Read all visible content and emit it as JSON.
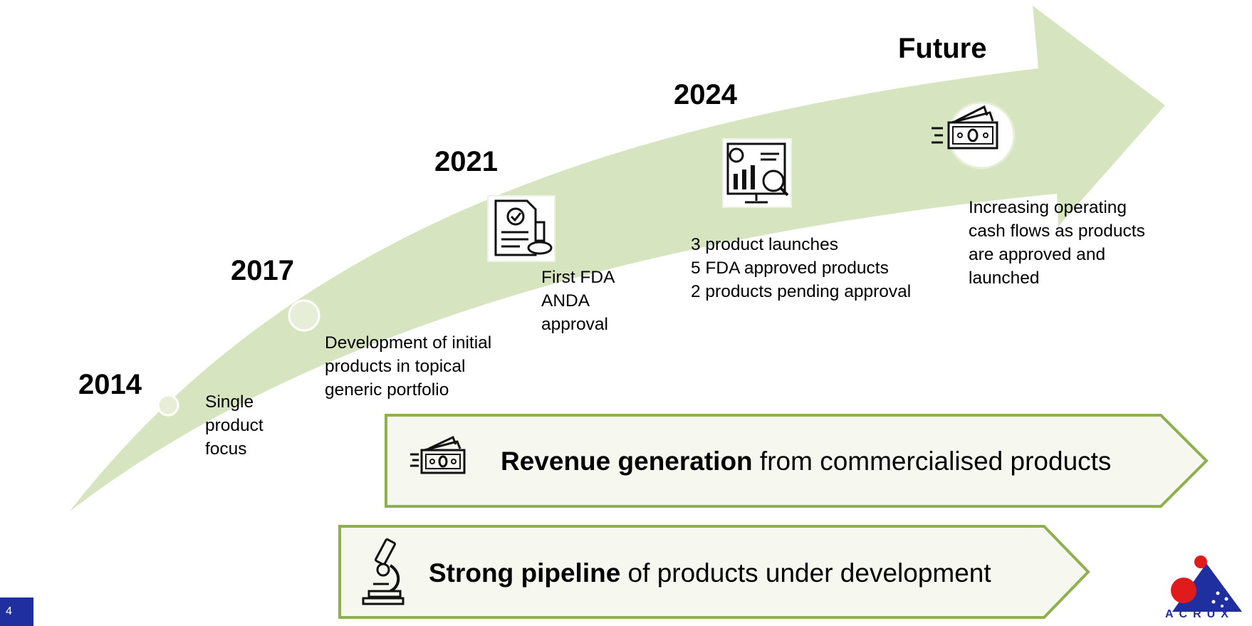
{
  "slide": {
    "page_number": "4"
  },
  "milestones": [
    {
      "year": "2014",
      "description": "Single\nproduct\nfocus"
    },
    {
      "year": "2017",
      "description": "Development of initial\nproducts in topical\ngeneric portfolio"
    },
    {
      "year": "2021",
      "description": "First FDA\nANDA\napproval"
    },
    {
      "year": "2024",
      "description": "3 product launches\n5 FDA approved products\n2 products pending approval"
    },
    {
      "year": "Future",
      "description": "Increasing operating\ncash flows as products\nare approved and\nlaunched"
    }
  ],
  "banners": [
    {
      "bold": "Revenue generation",
      "rest": " from commercialised products",
      "icon": "money-icon"
    },
    {
      "bold": "Strong pipeline",
      "rest": " of products under development",
      "icon": "microscope-icon"
    }
  ],
  "logo": {
    "text": "ACRUX"
  },
  "colors": {
    "arrow": "#d6e4bf",
    "banner_border": "#8fb04f",
    "banner_fill": "#f6f8f0",
    "page_badge": "#1f2fa0",
    "logo_red": "#e01b1b",
    "logo_blue": "#1f2fa0"
  }
}
